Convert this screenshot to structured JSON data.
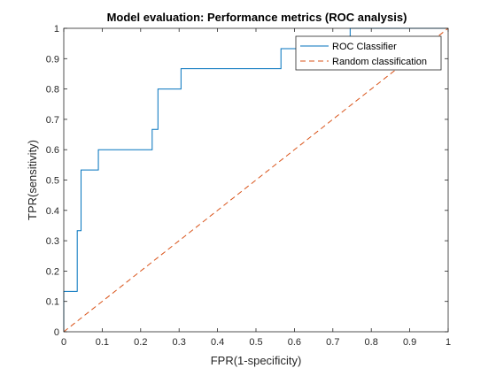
{
  "chart_data": {
    "type": "line",
    "title": "Model evaluation: Performance metrics (ROC analysis)",
    "xlabel": "FPR(1-specificity)",
    "ylabel": "TPR(sensitivity)",
    "xlim": [
      0,
      1
    ],
    "ylim": [
      0,
      1
    ],
    "xticks": [
      "0",
      "0.1",
      "0.2",
      "0.3",
      "0.4",
      "0.5",
      "0.6",
      "0.7",
      "0.8",
      "0.9",
      "1"
    ],
    "yticks": [
      "0",
      "0.1",
      "0.2",
      "0.3",
      "0.4",
      "0.5",
      "0.6",
      "0.7",
      "0.8",
      "0.9",
      "1"
    ],
    "grid": false,
    "legend_position": "top-right",
    "series": [
      {
        "name": "ROC Classifier",
        "color": "#0072BD",
        "style": "solid",
        "x": [
          0,
          0,
          0.035,
          0.035,
          0.045,
          0.045,
          0.09,
          0.09,
          0.23,
          0.23,
          0.245,
          0.245,
          0.305,
          0.305,
          0.565,
          0.565,
          0.745,
          0.745,
          1
        ],
        "y": [
          0,
          0.133,
          0.133,
          0.333,
          0.333,
          0.533,
          0.533,
          0.6,
          0.6,
          0.667,
          0.667,
          0.8,
          0.8,
          0.867,
          0.867,
          0.933,
          0.933,
          1,
          1
        ]
      },
      {
        "name": "Random classification",
        "color": "#D95319",
        "style": "dashed",
        "x": [
          0,
          1
        ],
        "y": [
          0,
          1
        ]
      }
    ]
  }
}
